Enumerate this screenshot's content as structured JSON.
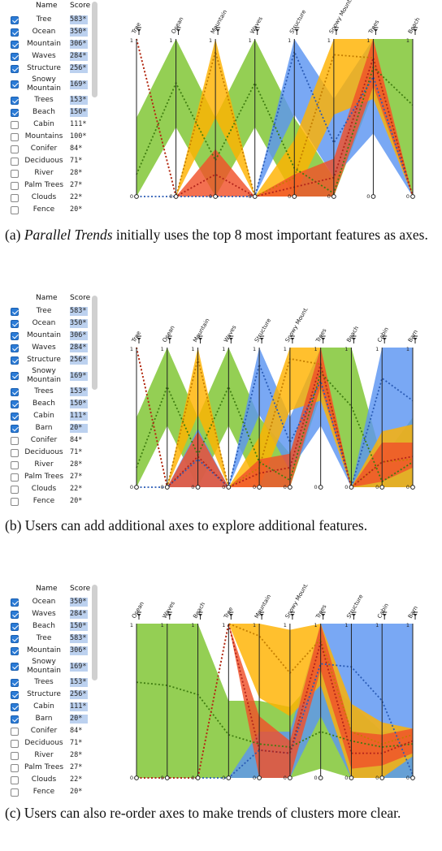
{
  "colors": {
    "green": "#7dc42e",
    "orange": "#ffb200",
    "red": "#f0502a",
    "blue": "#5b95f2",
    "checkbox": "#2b7bd6",
    "score_bar": "#bcd1ef"
  },
  "panels": [
    {
      "id": "a",
      "list": {
        "header_name": "Name",
        "header_score": "Score",
        "items": [
          {
            "name": "Tree",
            "score": "583*",
            "checked": true
          },
          {
            "name": "Ocean",
            "score": "350*",
            "checked": true
          },
          {
            "name": "Mountain",
            "score": "306*",
            "checked": true
          },
          {
            "name": "Waves",
            "score": "284*",
            "checked": true
          },
          {
            "name": "Structure",
            "score": "256*",
            "checked": true
          },
          {
            "name": "Snowy Mountain",
            "score": "169*",
            "checked": true
          },
          {
            "name": "Trees",
            "score": "153*",
            "checked": true
          },
          {
            "name": "Beach",
            "score": "150*",
            "checked": true
          },
          {
            "name": "Cabin",
            "score": "111*",
            "checked": false
          },
          {
            "name": "Mountains",
            "score": "100*",
            "checked": false
          },
          {
            "name": "Conifer",
            "score": "84*",
            "checked": false
          },
          {
            "name": "Deciduous",
            "score": "71*",
            "checked": false
          },
          {
            "name": "River",
            "score": "28*",
            "checked": false
          },
          {
            "name": "Palm Trees",
            "score": "27*",
            "checked": false
          },
          {
            "name": "Clouds",
            "score": "22*",
            "checked": false
          },
          {
            "name": "Fence",
            "score": "20*",
            "checked": false
          }
        ]
      },
      "caption_parts": [
        {
          "text": "(a) ",
          "italic": false
        },
        {
          "text": "Parallel Trends",
          "italic": true
        },
        {
          "text": " initially uses the top 8 most important features as axes.",
          "italic": false
        }
      ]
    },
    {
      "id": "b",
      "list": {
        "header_name": "Name",
        "header_score": "Score",
        "items": [
          {
            "name": "Tree",
            "score": "583*",
            "checked": true
          },
          {
            "name": "Ocean",
            "score": "350*",
            "checked": true
          },
          {
            "name": "Mountain",
            "score": "306*",
            "checked": true
          },
          {
            "name": "Waves",
            "score": "284*",
            "checked": true
          },
          {
            "name": "Structure",
            "score": "256*",
            "checked": true
          },
          {
            "name": "Snowy Mountain",
            "score": "169*",
            "checked": true
          },
          {
            "name": "Trees",
            "score": "153*",
            "checked": true
          },
          {
            "name": "Beach",
            "score": "150*",
            "checked": true
          },
          {
            "name": "Cabin",
            "score": "111*",
            "checked": true
          },
          {
            "name": "Barn",
            "score": "20*",
            "checked": true
          },
          {
            "name": "Conifer",
            "score": "84*",
            "checked": false
          },
          {
            "name": "Deciduous",
            "score": "71*",
            "checked": false
          },
          {
            "name": "River",
            "score": "28*",
            "checked": false
          },
          {
            "name": "Palm Trees",
            "score": "27*",
            "checked": false
          },
          {
            "name": "Clouds",
            "score": "22*",
            "checked": false
          },
          {
            "name": "Fence",
            "score": "20*",
            "checked": false
          }
        ]
      },
      "caption_parts": [
        {
          "text": "(b) Users can add additional axes to explore additional features.",
          "italic": false
        }
      ]
    },
    {
      "id": "c",
      "list": {
        "header_name": "Name",
        "header_score": "Score",
        "items": [
          {
            "name": "Ocean",
            "score": "350*",
            "checked": true
          },
          {
            "name": "Waves",
            "score": "284*",
            "checked": true
          },
          {
            "name": "Beach",
            "score": "150*",
            "checked": true
          },
          {
            "name": "Tree",
            "score": "583*",
            "checked": true
          },
          {
            "name": "Mountain",
            "score": "306*",
            "checked": true
          },
          {
            "name": "Snowy Mountain",
            "score": "169*",
            "checked": true
          },
          {
            "name": "Trees",
            "score": "153*",
            "checked": true
          },
          {
            "name": "Structure",
            "score": "256*",
            "checked": true
          },
          {
            "name": "Cabin",
            "score": "111*",
            "checked": true
          },
          {
            "name": "Barn",
            "score": "20*",
            "checked": true
          },
          {
            "name": "Conifer",
            "score": "84*",
            "checked": false
          },
          {
            "name": "Deciduous",
            "score": "71*",
            "checked": false
          },
          {
            "name": "River",
            "score": "28*",
            "checked": false
          },
          {
            "name": "Palm Trees",
            "score": "27*",
            "checked": false
          },
          {
            "name": "Clouds",
            "score": "22*",
            "checked": false
          },
          {
            "name": "Fence",
            "score": "20*",
            "checked": false
          }
        ]
      },
      "caption_parts": [
        {
          "text": "(c) Users can also re-order axes to make trends of clusters more clear.",
          "italic": false
        }
      ]
    }
  ],
  "chart_data": [
    {
      "type": "parallel-coordinates",
      "panel": "a",
      "axes": [
        "Tree",
        "Ocean",
        "Mountain",
        "Waves",
        "Structure",
        "Snowy Mountain",
        "Trees",
        "Beach"
      ],
      "ylim": [
        0,
        1
      ],
      "tick_labels": [
        "0",
        "1"
      ],
      "clusters": [
        {
          "color": "green",
          "mean": [
            0.14,
            0.72,
            0.23,
            0.72,
            0.18,
            0.02,
            0.82,
            0.58
          ],
          "lo": [
            0.0,
            0.44,
            0.0,
            0.44,
            0.0,
            0.0,
            0.66,
            0.0
          ],
          "hi": [
            0.5,
            1.0,
            0.5,
            1.0,
            0.5,
            0.12,
            1.0,
            1.0
          ]
        },
        {
          "color": "blue",
          "mean": [
            0.0,
            0.0,
            0.0,
            0.0,
            0.92,
            0.34,
            0.76,
            0.0
          ],
          "lo": [
            0.0,
            0.0,
            0.0,
            0.0,
            0.52,
            0.12,
            0.4,
            0.0
          ],
          "hi": [
            0.0,
            0.0,
            0.0,
            0.0,
            1.0,
            0.62,
            1.0,
            0.0
          ]
        },
        {
          "color": "orange",
          "mean": [
            1.0,
            0.0,
            0.92,
            0.0,
            0.12,
            0.9,
            0.88,
            0.0
          ],
          "lo": [
            1.0,
            0.0,
            0.5,
            0.0,
            0.0,
            0.52,
            0.62,
            0.0
          ],
          "hi": [
            1.0,
            0.0,
            1.0,
            0.0,
            0.36,
            1.0,
            1.0,
            0.0
          ]
        },
        {
          "color": "red",
          "mean": [
            1.0,
            0.0,
            0.14,
            0.0,
            0.06,
            0.12,
            0.88,
            0.0
          ],
          "lo": [
            1.0,
            0.0,
            0.0,
            0.0,
            0.0,
            0.0,
            0.7,
            0.0
          ],
          "hi": [
            1.0,
            0.0,
            0.3,
            0.0,
            0.14,
            0.24,
            1.0,
            0.0
          ]
        }
      ]
    },
    {
      "type": "parallel-coordinates",
      "panel": "b",
      "axes": [
        "Tree",
        "Ocean",
        "Mountain",
        "Waves",
        "Structure",
        "Snowy Mountain",
        "Trees",
        "Beach",
        "Cabin",
        "Barn"
      ],
      "ylim": [
        0,
        1
      ],
      "tick_labels": [
        "0",
        "1"
      ],
      "clusters": [
        {
          "color": "green",
          "mean": [
            0.14,
            0.72,
            0.23,
            0.72,
            0.18,
            0.05,
            0.82,
            0.58,
            0.04,
            0.18
          ],
          "lo": [
            0.0,
            0.44,
            0.0,
            0.44,
            0.0,
            0.0,
            0.66,
            0.0,
            0.0,
            0.0
          ],
          "hi": [
            0.5,
            1.0,
            0.5,
            1.0,
            0.5,
            0.24,
            1.0,
            1.0,
            0.2,
            0.5
          ]
        },
        {
          "color": "blue",
          "mean": [
            0.0,
            0.0,
            0.2,
            0.0,
            0.88,
            0.32,
            0.76,
            0.0,
            0.78,
            0.62
          ],
          "lo": [
            0.0,
            0.0,
            0.0,
            0.0,
            0.52,
            0.12,
            0.44,
            0.0,
            0.0,
            0.0
          ],
          "hi": [
            0.0,
            0.0,
            0.42,
            0.0,
            1.0,
            0.5,
            1.0,
            0.0,
            1.0,
            1.0
          ]
        },
        {
          "color": "orange",
          "mean": [
            1.0,
            0.0,
            0.92,
            0.0,
            0.14,
            0.92,
            0.88,
            0.0,
            0.18,
            0.2
          ],
          "lo": [
            1.0,
            0.0,
            0.52,
            0.0,
            0.0,
            0.55,
            0.62,
            0.0,
            0.0,
            0.0
          ],
          "hi": [
            1.0,
            0.0,
            1.0,
            0.0,
            0.36,
            1.0,
            1.0,
            0.0,
            0.4,
            0.45
          ]
        },
        {
          "color": "red",
          "mean": [
            1.0,
            0.0,
            0.22,
            0.0,
            0.1,
            0.14,
            0.88,
            0.0,
            0.18,
            0.22
          ],
          "lo": [
            1.0,
            0.0,
            0.0,
            0.0,
            0.0,
            0.0,
            0.72,
            0.0,
            0.04,
            0.14
          ],
          "hi": [
            1.0,
            0.0,
            0.4,
            0.0,
            0.2,
            0.24,
            1.0,
            0.0,
            0.32,
            0.32
          ]
        }
      ]
    },
    {
      "type": "parallel-coordinates",
      "panel": "c",
      "axes": [
        "Ocean",
        "Waves",
        "Beach",
        "Tree",
        "Mountain",
        "Snowy Mountain",
        "Trees",
        "Structure",
        "Cabin",
        "Barn"
      ],
      "ylim": [
        0,
        1
      ],
      "tick_labels": [
        "0",
        "1"
      ],
      "clusters": [
        {
          "color": "green",
          "mean": [
            0.62,
            0.6,
            0.54,
            0.28,
            0.22,
            0.2,
            0.3,
            0.24,
            0.2,
            0.22
          ],
          "lo": [
            0.0,
            0.0,
            0.0,
            0.0,
            0.0,
            0.0,
            0.06,
            0.0,
            0.0,
            0.0
          ],
          "hi": [
            1.0,
            1.0,
            1.0,
            0.5,
            0.5,
            0.46,
            0.68,
            0.48,
            0.3,
            0.3
          ]
        },
        {
          "color": "blue",
          "mean": [
            0.0,
            0.0,
            0.0,
            0.0,
            0.18,
            0.16,
            0.74,
            0.72,
            0.5,
            0.02
          ],
          "lo": [
            0.0,
            0.0,
            0.0,
            0.0,
            0.0,
            0.0,
            0.4,
            0.0,
            0.0,
            0.0
          ],
          "hi": [
            0.0,
            0.0,
            0.0,
            0.0,
            0.3,
            0.3,
            1.0,
            1.0,
            1.0,
            1.0
          ]
        },
        {
          "color": "orange",
          "mean": [
            0.0,
            0.0,
            0.0,
            1.0,
            0.92,
            0.68,
            0.9,
            0.3,
            0.22,
            0.28
          ],
          "lo": [
            0.0,
            0.0,
            0.0,
            1.0,
            0.52,
            0.4,
            0.6,
            0.0,
            0.0,
            0.14
          ],
          "hi": [
            0.0,
            0.0,
            0.0,
            1.0,
            1.0,
            0.96,
            1.0,
            0.48,
            0.36,
            0.32
          ]
        },
        {
          "color": "red",
          "mean": [
            0.0,
            0.0,
            0.0,
            1.0,
            0.18,
            0.16,
            0.88,
            0.16,
            0.16,
            0.24
          ],
          "lo": [
            0.0,
            0.0,
            0.0,
            1.0,
            0.0,
            0.0,
            0.7,
            0.06,
            0.08,
            0.16
          ],
          "hi": [
            0.0,
            0.0,
            0.0,
            1.0,
            0.4,
            0.24,
            1.0,
            0.3,
            0.28,
            0.32
          ]
        }
      ]
    }
  ]
}
